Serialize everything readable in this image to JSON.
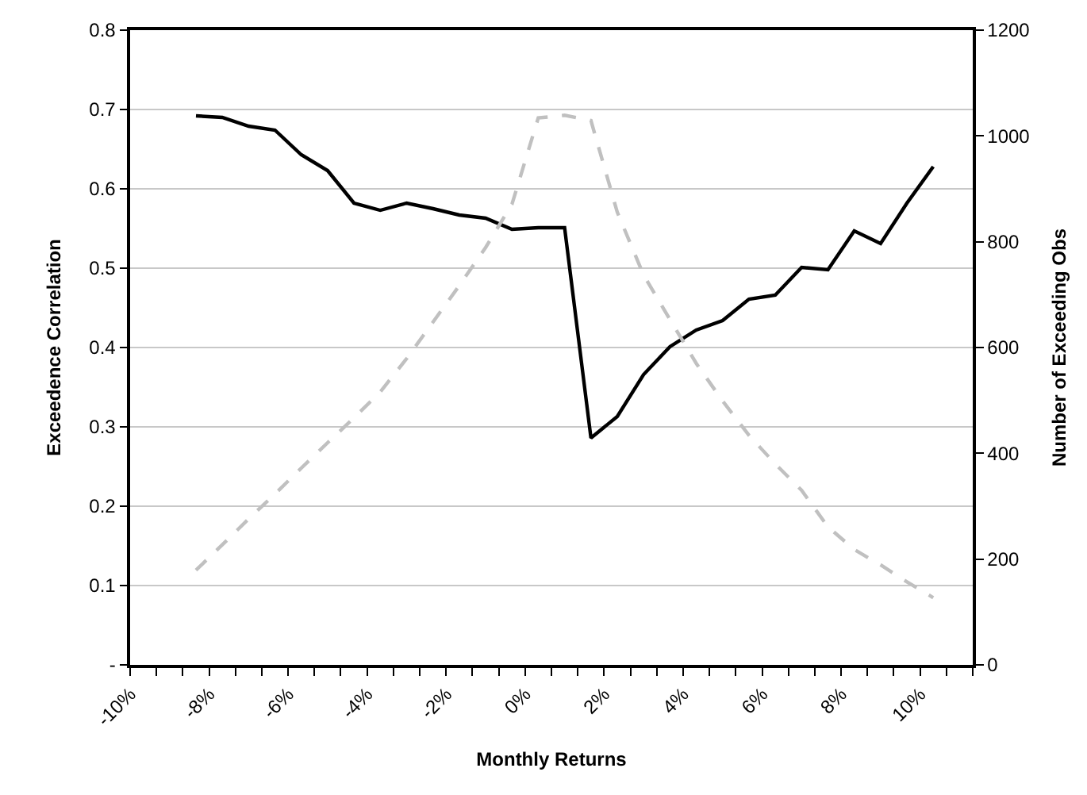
{
  "chart_data": {
    "type": "line",
    "xlabel": "Monthly Returns",
    "ylabel": "Exceedence Correlation",
    "y2label": "Number of Exceeding Obs",
    "x": [
      -8.333,
      -7.667,
      -7,
      -6.333,
      -5.667,
      -5,
      -4.333,
      -3.667,
      -3,
      -2.333,
      -1.667,
      -1,
      -0.333,
      0.333,
      1,
      1.667,
      2.333,
      3,
      3.667,
      4.333,
      5,
      5.667,
      6.333,
      7,
      7.667,
      8.333,
      9,
      9.667,
      10.333
    ],
    "series": [
      {
        "color": "#000000",
        "line_style": "solid",
        "values": [
          0.692,
          0.69,
          0.679,
          0.674,
          0.643,
          0.623,
          0.582,
          0.573,
          0.582,
          0.575,
          0.567,
          0.563,
          0.549,
          0.551,
          0.551,
          0.286,
          0.313,
          0.366,
          0.401,
          0.422,
          0.434,
          0.461,
          0.466,
          0.501,
          0.498,
          0.547,
          0.531,
          0.582,
          0.628
        ]
      },
      {
        "color": "#c0c0c0",
        "line_style": "dashed",
        "axis": "y2",
        "values": [
          179,
          227,
          276,
          323,
          372,
          420,
          467,
          516,
          579,
          648,
          717,
          789,
          871,
          1034,
          1039,
          1029,
          856,
          737,
          653,
          570,
          499,
          434,
          380,
          330,
          261,
          218,
          189,
          157,
          127
        ]
      }
    ],
    "xlim": [
      -10,
      11.333
    ],
    "xticks": [
      {
        "value": -10,
        "label": "-10%"
      },
      {
        "value": -9.333,
        "label": null
      },
      {
        "value": -8.667,
        "label": null
      },
      {
        "value": -8,
        "label": "-8%"
      },
      {
        "value": -7.333,
        "label": null
      },
      {
        "value": -6.667,
        "label": null
      },
      {
        "value": -6,
        "label": "-6%"
      },
      {
        "value": -5.333,
        "label": null
      },
      {
        "value": -4.667,
        "label": null
      },
      {
        "value": -4,
        "label": "-4%"
      },
      {
        "value": -3.333,
        "label": null
      },
      {
        "value": -2.667,
        "label": null
      },
      {
        "value": -2,
        "label": "-2%"
      },
      {
        "value": -1.333,
        "label": null
      },
      {
        "value": -0.667,
        "label": null
      },
      {
        "value": 0,
        "label": "0%"
      },
      {
        "value": 0.667,
        "label": null
      },
      {
        "value": 1.333,
        "label": null
      },
      {
        "value": 2,
        "label": "2%"
      },
      {
        "value": 2.667,
        "label": null
      },
      {
        "value": 3.333,
        "label": null
      },
      {
        "value": 4,
        "label": "4%"
      },
      {
        "value": 4.667,
        "label": null
      },
      {
        "value": 5.333,
        "label": null
      },
      {
        "value": 6,
        "label": "6%"
      },
      {
        "value": 6.667,
        "label": null
      },
      {
        "value": 7.333,
        "label": null
      },
      {
        "value": 8,
        "label": "8%"
      },
      {
        "value": 8.667,
        "label": null
      },
      {
        "value": 9.333,
        "label": null
      },
      {
        "value": 10,
        "label": "10%"
      },
      {
        "value": 10.667,
        "label": null
      },
      {
        "value": 11.333,
        "label": null
      }
    ],
    "ylim": [
      0,
      0.8
    ],
    "yticks": [
      {
        "value": 0,
        "label": "-"
      },
      0.1,
      0.2,
      0.3,
      0.4,
      0.5,
      0.6,
      0.7,
      0.8
    ],
    "y2lim": [
      0,
      1200
    ],
    "y2ticks": [
      0,
      200,
      400,
      600,
      800,
      1000,
      1200
    ],
    "grid": "y"
  }
}
